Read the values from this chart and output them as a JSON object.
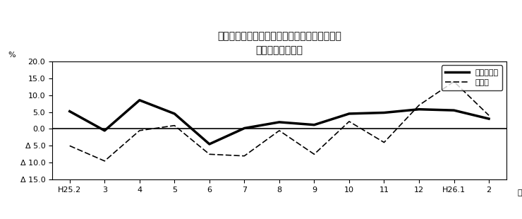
{
  "title_line1": "第２図　所定外労働時間　対前年同月比の推移",
  "title_line2": "（規樨５人以上）",
  "xlabel": "月",
  "ylabel": "%",
  "x_labels": [
    "H25.2",
    "3",
    "4",
    "5",
    "6",
    "7",
    "8",
    "9",
    "10",
    "11",
    "12",
    "H26.1",
    "2"
  ],
  "survey_total": [
    5.2,
    -0.5,
    8.5,
    4.5,
    -4.5,
    0.2,
    2.0,
    1.2,
    4.5,
    4.8,
    5.8,
    5.5,
    3.0
  ],
  "manufacturing": [
    -5.0,
    -9.5,
    -0.5,
    1.0,
    -7.5,
    -8.0,
    -0.5,
    -7.5,
    2.2,
    -4.0,
    7.0,
    14.0,
    4.0
  ],
  "ylim_min": -15.0,
  "ylim_max": 20.0,
  "yticks": [
    -15.0,
    -10.0,
    -5.0,
    0.0,
    5.0,
    10.0,
    15.0,
    20.0
  ],
  "ytick_labels": [
    "Δ 15.0",
    "Δ 10.0",
    "Δ 5.0",
    "0.0",
    "5.0",
    "10.0",
    "15.0",
    "20.0"
  ],
  "legend_total": "調査産業計",
  "legend_mfg": "製造業",
  "bg_color": "#ffffff",
  "line_color": "#000000"
}
